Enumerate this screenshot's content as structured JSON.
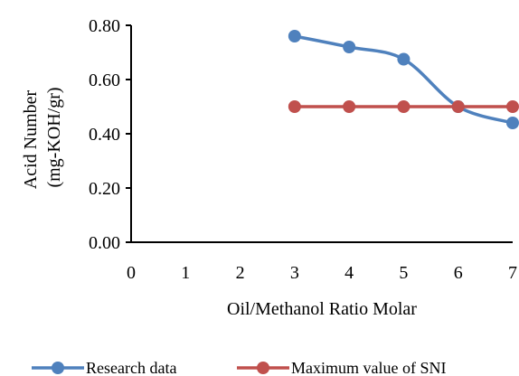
{
  "chart_data": {
    "type": "line",
    "title": "",
    "xlabel": "Oil/Methanol Ratio Molar",
    "ylabel_lines": [
      "Acid Number",
      "(mg-KOH/gr)"
    ],
    "xlim": [
      0,
      7
    ],
    "ylim": [
      0,
      0.8
    ],
    "x_ticks": [
      "0",
      "1",
      "2",
      "3",
      "4",
      "5",
      "6",
      "7"
    ],
    "y_ticks": [
      "0.00",
      "0.20",
      "0.40",
      "0.60",
      "0.80"
    ],
    "y_tick_values": [
      0,
      0.2,
      0.4,
      0.6,
      0.8
    ],
    "grid": false,
    "legend_position": "bottom",
    "series": [
      {
        "name": "Research data",
        "color": "#4F81BD",
        "smooth": true,
        "x": [
          3,
          4,
          5,
          6,
          7
        ],
        "y": [
          0.76,
          0.72,
          0.675,
          0.5,
          0.44
        ]
      },
      {
        "name": "Maximum value of SNI",
        "color": "#C0504D",
        "smooth": false,
        "x": [
          3,
          4,
          5,
          6,
          7
        ],
        "y": [
          0.5,
          0.5,
          0.5,
          0.5,
          0.5
        ]
      }
    ]
  }
}
